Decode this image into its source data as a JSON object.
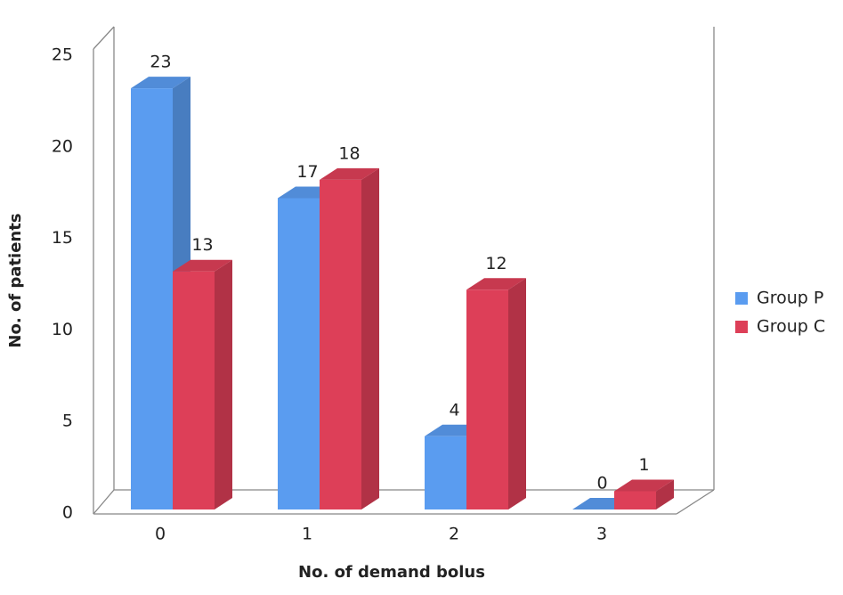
{
  "chart_data": {
    "type": "bar3d",
    "categories": [
      "0",
      "1",
      "2",
      "3"
    ],
    "series": [
      {
        "name": "Group P",
        "color": "#5a9cf0",
        "values": [
          23,
          17,
          4,
          0
        ]
      },
      {
        "name": "Group C",
        "color": "#dd3f58",
        "values": [
          13,
          18,
          12,
          1
        ]
      }
    ],
    "x_label": "No. of demand bolus",
    "y_label": "No. of patients",
    "ylim": [
      0,
      25
    ],
    "yticks": [
      0,
      5,
      10,
      15,
      20,
      25
    ],
    "legend": "right"
  }
}
